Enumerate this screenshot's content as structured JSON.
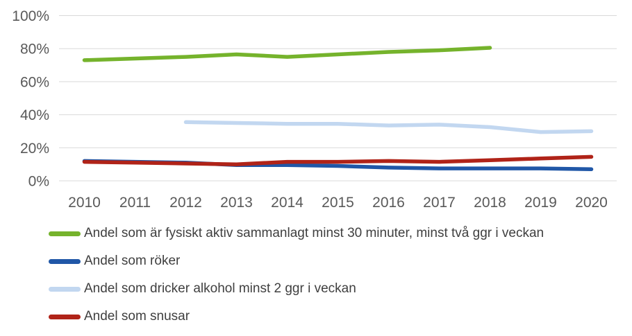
{
  "chart": {
    "y_ticks": [
      "0%",
      "20%",
      "40%",
      "60%",
      "80%",
      "100%"
    ],
    "gridline_color": "#D9D9D9",
    "axis_text_color": "#595959",
    "legend_text_color": "#3F3F3F"
  },
  "chart_data": {
    "type": "line",
    "x": [
      2010,
      2011,
      2012,
      2013,
      2014,
      2015,
      2016,
      2017,
      2018,
      2019,
      2020
    ],
    "series": [
      {
        "name": "Andel som är fysiskt aktiv sammanlagt minst 30 minuter, minst två ggr i veckan",
        "color": "#75B32C",
        "values": [
          73,
          74,
          75,
          76.5,
          75,
          76.5,
          78,
          79,
          80.5,
          null,
          null
        ]
      },
      {
        "name": "Andel som röker",
        "color": "#2057A7",
        "values": [
          12,
          11.5,
          11,
          9.5,
          9.5,
          9,
          8,
          7.5,
          7.5,
          7.5,
          7
        ]
      },
      {
        "name": "Andel som dricker alkohol minst 2 ggr i veckan",
        "color": "#C2D7F0",
        "values": [
          null,
          null,
          35.5,
          35,
          34.5,
          34.5,
          33.5,
          34,
          32.5,
          29.5,
          30
        ]
      },
      {
        "name": "Andel som snusar",
        "color": "#B02318",
        "values": [
          11.5,
          11,
          10.5,
          10,
          11.5,
          11.5,
          12,
          11.5,
          12.5,
          13.5,
          14.5
        ]
      }
    ],
    "ylim": [
      0,
      100
    ],
    "y_tick_step": 20,
    "grid": true,
    "legend_position": "bottom-left"
  }
}
